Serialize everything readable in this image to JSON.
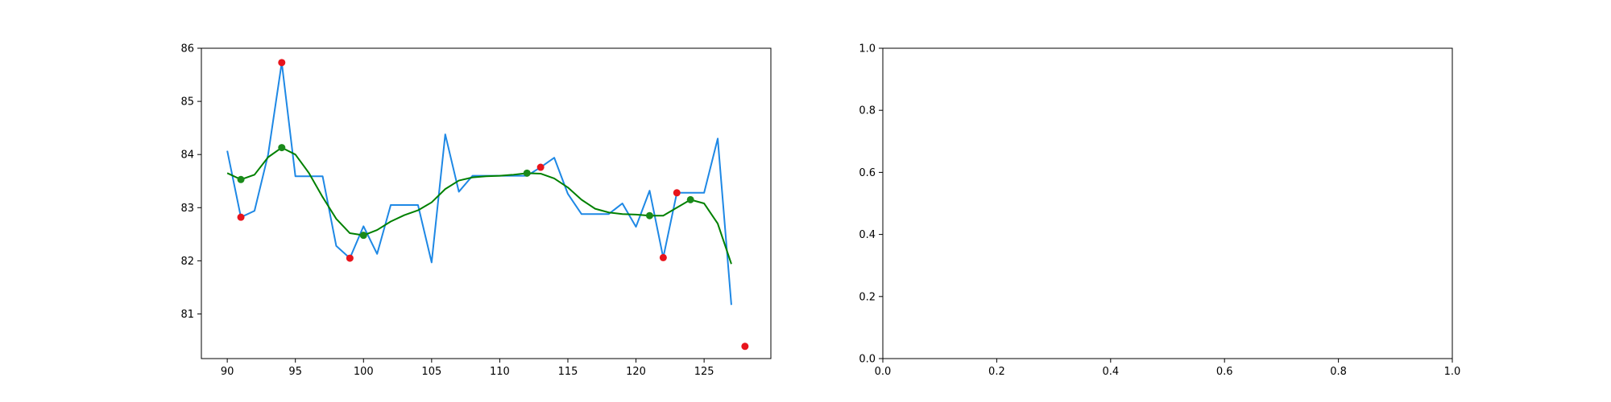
{
  "chart_data": [
    {
      "type": "line",
      "title": "",
      "xlabel": "",
      "ylabel": "",
      "xlim": [
        88.1,
        129.9
      ],
      "ylim": [
        80.16,
        86.0
      ],
      "xticks": [
        90,
        95,
        100,
        105,
        110,
        115,
        120,
        125
      ],
      "yticks": [
        81,
        82,
        83,
        84,
        85,
        86
      ],
      "grid": false,
      "series": [
        {
          "kind": "line",
          "color": "#1e88e5",
          "x": [
            90,
            91,
            92,
            93,
            94,
            95,
            96,
            97,
            98,
            99,
            100,
            101,
            102,
            103,
            104,
            105,
            106,
            107,
            108,
            109,
            110,
            111,
            112,
            113,
            114,
            115,
            116,
            117,
            118,
            119,
            120,
            121,
            122,
            123,
            124,
            125,
            126,
            127
          ],
          "y": [
            84.07,
            82.82,
            82.94,
            84.0,
            85.73,
            83.59,
            83.59,
            83.59,
            82.28,
            82.05,
            82.65,
            82.13,
            83.05,
            83.05,
            83.05,
            81.97,
            84.38,
            83.3,
            83.6,
            83.6,
            83.6,
            83.6,
            83.6,
            83.76,
            83.94,
            83.26,
            82.88,
            82.88,
            82.88,
            83.08,
            82.64,
            83.32,
            82.06,
            83.28,
            83.28,
            83.28,
            84.3,
            81.17
          ]
        },
        {
          "kind": "line",
          "color": "#008000",
          "x": [
            90,
            91,
            92,
            93,
            94,
            95,
            96,
            97,
            98,
            99,
            100,
            101,
            102,
            103,
            104,
            105,
            106,
            107,
            108,
            109,
            110,
            111,
            112,
            113,
            114,
            115,
            116,
            117,
            118,
            119,
            120,
            121,
            122,
            123,
            124,
            125,
            126,
            127
          ],
          "y": [
            83.65,
            83.53,
            83.62,
            83.95,
            84.13,
            84.0,
            83.65,
            83.2,
            82.79,
            82.52,
            82.48,
            82.58,
            82.74,
            82.86,
            82.95,
            83.1,
            83.35,
            83.51,
            83.57,
            83.59,
            83.6,
            83.62,
            83.65,
            83.64,
            83.55,
            83.38,
            83.15,
            82.98,
            82.91,
            82.88,
            82.87,
            82.85,
            82.85,
            83.0,
            83.15,
            83.08,
            82.7,
            81.94
          ]
        },
        {
          "kind": "scatter",
          "color": "#e8141c",
          "x": [
            91,
            94,
            99,
            113,
            122,
            123,
            128
          ],
          "y": [
            82.82,
            85.73,
            82.05,
            83.76,
            82.06,
            83.28,
            80.39
          ]
        },
        {
          "kind": "scatter",
          "color": "#1a8a1a",
          "x": [
            91,
            94,
            100,
            112,
            121,
            124
          ],
          "y": [
            83.53,
            84.13,
            82.48,
            83.65,
            82.85,
            83.15
          ]
        }
      ]
    },
    {
      "type": "line",
      "title": "",
      "xlabel": "",
      "ylabel": "",
      "xlim": [
        0.0,
        1.0
      ],
      "ylim": [
        0.0,
        1.0
      ],
      "xticks": [
        0.0,
        0.2,
        0.4,
        0.6,
        0.8,
        1.0
      ],
      "yticks": [
        0.0,
        0.2,
        0.4,
        0.6,
        0.8,
        1.0
      ],
      "grid": false,
      "series": []
    }
  ]
}
